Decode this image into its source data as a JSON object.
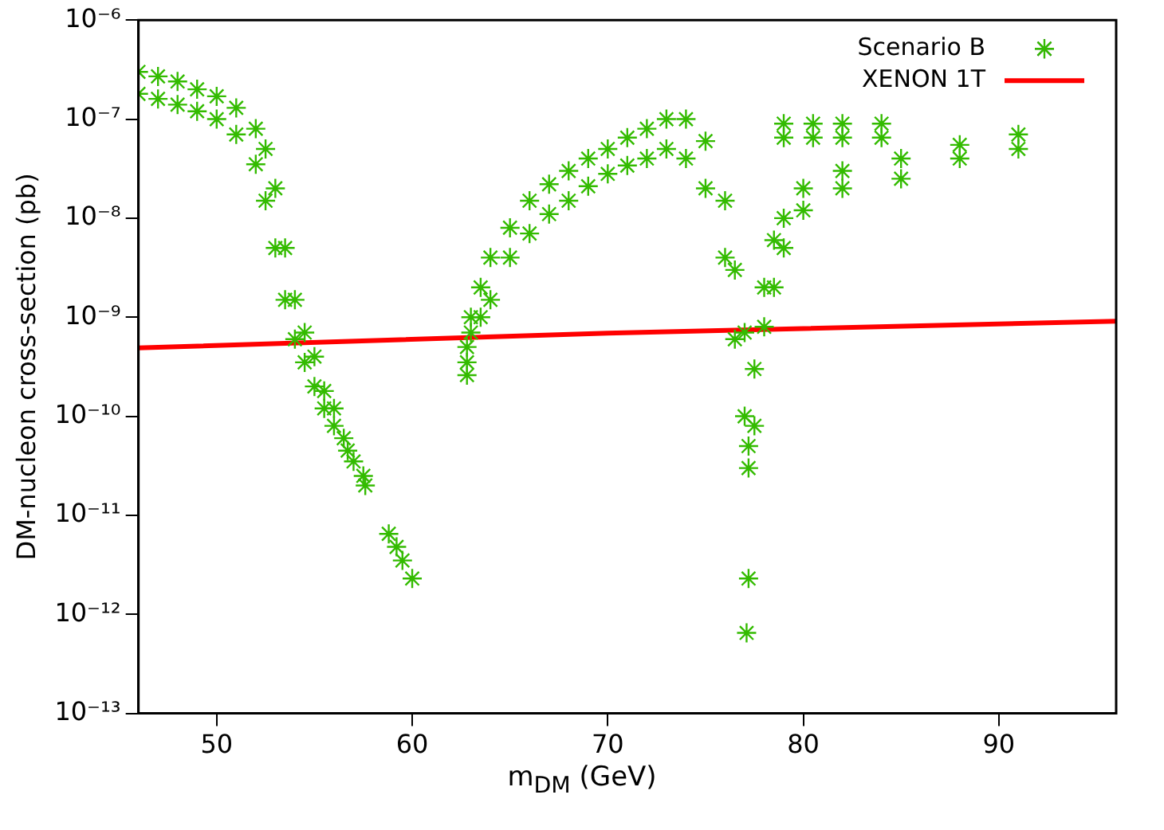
{
  "chart_data": {
    "type": "scatter",
    "xlabel": "m$_{DM}$ (GeV)",
    "ylabel": "DM-nucleon cross-section (pb)",
    "xlim": [
      46,
      96
    ],
    "xticks": [
      50,
      60,
      70,
      80,
      90
    ],
    "ylim": [
      1e-13,
      1e-06
    ],
    "yticks": [
      {
        "value": 1e-13,
        "label": "10⁻¹³"
      },
      {
        "value": 1e-12,
        "label": "10⁻¹²"
      },
      {
        "value": 1e-11,
        "label": "10⁻¹¹"
      },
      {
        "value": 1e-10,
        "label": "10⁻¹⁰"
      },
      {
        "value": 1e-09,
        "label": "10⁻⁹"
      },
      {
        "value": 1e-08,
        "label": "10⁻⁸"
      },
      {
        "value": 1e-07,
        "label": "10⁻⁷"
      },
      {
        "value": 1e-06,
        "label": "10⁻⁶"
      }
    ],
    "log": "y",
    "grid": false,
    "legend": "top right",
    "marker": "cross",
    "series": [
      {
        "name": "Scenario B",
        "color": "#33bb00",
        "x": [
          46,
          46,
          47,
          47,
          48,
          48,
          49,
          49,
          50,
          50,
          51,
          51,
          52,
          52,
          52.5,
          52.5,
          53,
          53,
          53.5,
          53.5,
          54,
          54,
          54.5,
          54.5,
          55,
          55,
          55.5,
          55.5,
          56,
          56,
          56.5,
          56.7,
          57,
          57.5,
          57.6,
          58.8,
          59.2,
          59.5,
          60,
          62.8,
          62.8,
          62.8,
          63,
          63,
          63.5,
          63.5,
          64,
          64,
          65,
          65,
          66,
          66,
          67,
          67,
          68,
          68,
          69,
          69,
          70,
          70,
          71,
          71,
          72,
          72,
          73,
          73,
          74,
          74,
          75,
          75,
          76,
          76,
          76.5,
          76.5,
          77,
          77,
          77.2,
          77.2,
          77.2,
          77.1,
          77.5,
          77.5,
          78,
          78,
          78.5,
          78.5,
          79,
          79,
          80,
          80,
          82,
          82,
          85,
          85,
          88,
          88,
          91,
          91,
          79,
          79,
          80.5,
          80.5,
          82,
          82,
          84,
          84
        ],
        "values": [
          3e-07,
          1.8e-07,
          2.7e-07,
          1.6e-07,
          2.4e-07,
          1.4e-07,
          2e-07,
          1.2e-07,
          1.7e-07,
          1e-07,
          1.3e-07,
          7e-08,
          8e-08,
          3.5e-08,
          5e-08,
          1.5e-08,
          2e-08,
          5e-09,
          5e-09,
          1.5e-09,
          1.5e-09,
          6e-10,
          7e-10,
          3.5e-10,
          4e-10,
          2e-10,
          1.8e-10,
          1.2e-10,
          1.2e-10,
          8e-11,
          6e-11,
          4.5e-11,
          3.5e-11,
          2.5e-11,
          2e-11,
          6.5e-12,
          4.8e-12,
          3.5e-12,
          2.3e-12,
          2.6e-10,
          3.5e-10,
          5e-10,
          1e-09,
          7e-10,
          2e-09,
          1e-09,
          4e-09,
          1.5e-09,
          8e-09,
          4e-09,
          1.5e-08,
          7e-09,
          2.2e-08,
          1.1e-08,
          3e-08,
          1.5e-08,
          4e-08,
          2.1e-08,
          5e-08,
          2.8e-08,
          6.5e-08,
          3.4e-08,
          8e-08,
          4e-08,
          1e-07,
          5e-08,
          1e-07,
          4e-08,
          6e-08,
          2e-08,
          1.5e-08,
          4e-09,
          3e-09,
          6e-10,
          7e-10,
          1e-10,
          5e-11,
          3e-11,
          2.3e-12,
          6.5e-13,
          3e-10,
          8e-11,
          2e-09,
          8e-10,
          6e-09,
          2e-09,
          1e-08,
          5e-09,
          2e-08,
          1.2e-08,
          3e-08,
          2e-08,
          4e-08,
          2.5e-08,
          5.5e-08,
          4e-08,
          7e-08,
          5e-08,
          9e-08,
          6.5e-08,
          9e-08,
          6.5e-08,
          9e-08,
          6.5e-08,
          9e-08,
          6.5e-08
        ]
      },
      {
        "name": "XENON 1T",
        "type": "line",
        "color": "#ff0000",
        "marker": "none",
        "line_style": "solid",
        "x": [
          46,
          70,
          96
        ],
        "values": [
          4.9e-10,
          6.9e-10,
          9.1e-10
        ]
      }
    ]
  }
}
